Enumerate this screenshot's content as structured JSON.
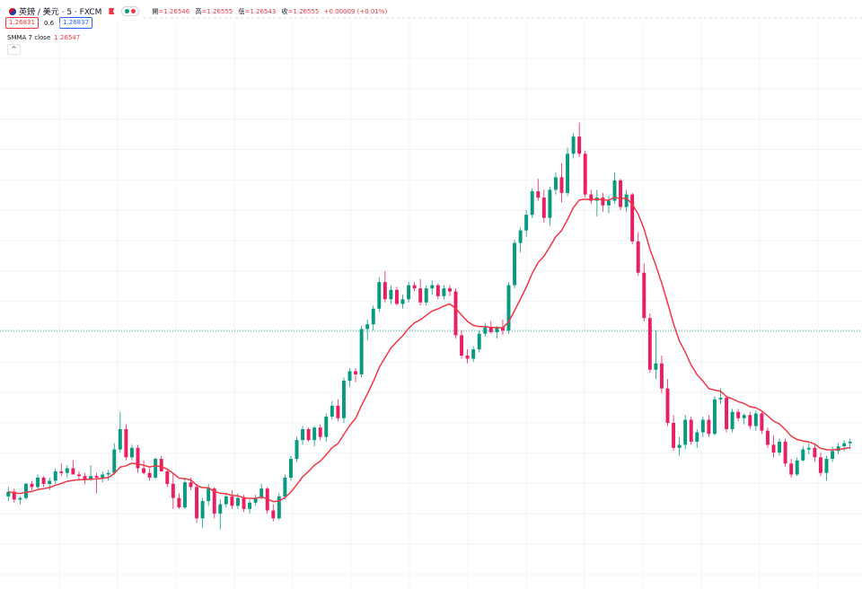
{
  "header": {
    "symbol": "英鎊 / 美元 · 5 · FXCM",
    "open_label": "開",
    "open": "=1.26546",
    "high_label": "高",
    "high": "=1.26555",
    "low_label": "低",
    "low": "=1.26543",
    "close_label": "收",
    "close": "=1.26555",
    "change": "+0.00009 (+0.01%)",
    "bid": "1.26831",
    "spread": "0.6",
    "ask": "1.26837",
    "indicator_name": "SMMA 7 close",
    "indicator_value": "1.26547",
    "collapse_icon": "^"
  },
  "colors": {
    "up": "#089981",
    "down": "#f23645",
    "down_body": "#e91e63",
    "smma": "#f23645",
    "grid": "#f0f3fa",
    "price_line": "#26a69a"
  },
  "chart_data": {
    "type": "candlestick",
    "note_units": "price index (arbitrary units, higher = higher price)",
    "current_price_level": 40.6,
    "candles": [
      [
        30,
        30.6,
        29.7,
        30.3
      ],
      [
        30.3,
        30.5,
        29.6,
        29.8
      ],
      [
        29.8,
        30,
        29.5,
        29.9
      ],
      [
        29.9,
        30.9,
        29.8,
        30.8
      ],
      [
        30.8,
        31,
        30.4,
        30.6
      ],
      [
        30.6,
        31.4,
        30.5,
        31.2
      ],
      [
        31.2,
        31.3,
        30.6,
        30.8
      ],
      [
        30.8,
        31.2,
        30.4,
        31
      ],
      [
        31,
        31.8,
        30.8,
        31.6
      ],
      [
        31.6,
        32.1,
        31.3,
        31.5
      ],
      [
        31.5,
        32,
        31.2,
        31.8
      ],
      [
        31.8,
        32.3,
        31.4,
        31.4
      ],
      [
        31.4,
        31.6,
        31,
        31.3
      ],
      [
        31.3,
        31.5,
        30.8,
        31.1
      ],
      [
        31.1,
        32,
        31,
        31.3
      ],
      [
        31.3,
        31.5,
        30.2,
        31.2
      ],
      [
        31.2,
        31.6,
        30.9,
        31.4
      ],
      [
        31.4,
        31.7,
        31,
        31.5
      ],
      [
        31.5,
        33.4,
        31.4,
        33
      ],
      [
        33,
        35.4,
        32.8,
        34.3
      ],
      [
        34.3,
        34.6,
        32.3,
        32.5
      ],
      [
        32.5,
        33.3,
        32.3,
        33.1
      ],
      [
        33.1,
        33.3,
        31.5,
        31.8
      ],
      [
        31.8,
        32.3,
        31.4,
        31.5
      ],
      [
        31.5,
        31.8,
        31,
        31.2
      ],
      [
        31.2,
        32.5,
        31.1,
        32.4
      ],
      [
        32.4,
        32.6,
        31.7,
        31.6
      ],
      [
        31.6,
        31.7,
        30.6,
        30.8
      ],
      [
        30.8,
        31.5,
        29.2,
        29.9
      ],
      [
        29.9,
        30.2,
        29.2,
        29.3
      ],
      [
        29.3,
        31.2,
        29.2,
        30.9
      ],
      [
        30.9,
        31.2,
        30.4,
        30.6
      ],
      [
        30.6,
        30.8,
        28.3,
        28.6
      ],
      [
        28.6,
        29.9,
        28,
        29.7
      ],
      [
        29.7,
        30.8,
        29.4,
        30.5
      ],
      [
        30.5,
        30.6,
        28.6,
        28.9
      ],
      [
        28.9,
        29.8,
        27.9,
        29.5
      ],
      [
        29.5,
        30.2,
        29.3,
        30
      ],
      [
        30,
        30.4,
        29.2,
        29.4
      ],
      [
        29.4,
        30.2,
        29.2,
        29.9
      ],
      [
        29.9,
        30.1,
        29,
        29.2
      ],
      [
        29.2,
        29.8,
        28.9,
        29.6
      ],
      [
        29.6,
        30.1,
        29.4,
        29.9
      ],
      [
        29.9,
        30.8,
        29.8,
        30.5
      ],
      [
        30.5,
        30.6,
        28.9,
        29.1
      ],
      [
        29.1,
        29.5,
        28.4,
        28.6
      ],
      [
        28.6,
        30.2,
        28.5,
        30
      ],
      [
        30,
        31.4,
        29.8,
        31.2
      ],
      [
        31.2,
        32.6,
        31,
        32.4
      ],
      [
        32.4,
        33.8,
        32.2,
        33.6
      ],
      [
        33.6,
        34.5,
        33.3,
        34.3
      ],
      [
        34.3,
        34.4,
        33.5,
        33.6
      ],
      [
        33.6,
        34.5,
        33.2,
        34.4
      ],
      [
        34.4,
        34.6,
        33.6,
        33.8
      ],
      [
        33.8,
        35.3,
        33.5,
        35.1
      ],
      [
        35.1,
        36.1,
        34.9,
        35.8
      ],
      [
        35.8,
        36.2,
        34.8,
        35
      ],
      [
        35,
        37.6,
        34.7,
        37.4
      ],
      [
        37.4,
        38.2,
        37,
        38
      ],
      [
        38,
        38.2,
        37.3,
        37.8
      ],
      [
        37.8,
        40.9,
        37.6,
        40.7
      ],
      [
        40.7,
        41.3,
        40,
        41
      ],
      [
        41,
        42.2,
        40.6,
        42
      ],
      [
        42,
        44,
        41.8,
        43.7
      ],
      [
        43.7,
        44.4,
        42.4,
        42.6
      ],
      [
        42.6,
        43.5,
        42.3,
        43.2
      ],
      [
        43.2,
        43.4,
        42.2,
        42.3
      ],
      [
        42.3,
        42.9,
        42,
        42.6
      ],
      [
        42.6,
        43.7,
        42.4,
        43.5
      ],
      [
        43.5,
        43.7,
        43.1,
        43.3
      ],
      [
        43.3,
        43.9,
        42.2,
        42.4
      ],
      [
        42.4,
        43.5,
        42.2,
        43.3
      ],
      [
        43.3,
        43.8,
        42.9,
        43.5
      ],
      [
        43.5,
        43.6,
        42.6,
        42.8
      ],
      [
        42.8,
        43.5,
        42.6,
        43.3
      ],
      [
        43.3,
        43.5,
        42.8,
        43.1
      ],
      [
        43.1,
        43.3,
        40.1,
        40.3
      ],
      [
        40.3,
        40.6,
        38.8,
        39
      ],
      [
        39,
        39.4,
        38.5,
        38.8
      ],
      [
        38.8,
        39.6,
        38.6,
        39.4
      ],
      [
        39.4,
        40.6,
        39.2,
        40.4
      ],
      [
        40.4,
        41.1,
        40.2,
        40.8
      ],
      [
        40.8,
        41.2,
        40.4,
        40.5
      ],
      [
        40.5,
        40.9,
        40.1,
        40.8
      ],
      [
        40.8,
        41.3,
        40.3,
        40.6
      ],
      [
        40.6,
        43.7,
        40.4,
        43.5
      ],
      [
        43.5,
        46.4,
        43.3,
        46.2
      ],
      [
        46.2,
        47.2,
        45.6,
        47
      ],
      [
        47,
        48.3,
        46.6,
        48
      ],
      [
        48,
        49.7,
        47.8,
        49.5
      ],
      [
        49.5,
        50.3,
        48.9,
        49.1
      ],
      [
        49.1,
        49.6,
        47.5,
        47.8
      ],
      [
        47.8,
        49.8,
        47.3,
        49.6
      ],
      [
        49.6,
        50.7,
        49.3,
        50.4
      ],
      [
        50.4,
        51.3,
        48.8,
        49.4
      ],
      [
        49.4,
        52.3,
        49.2,
        51.9
      ],
      [
        51.9,
        53.2,
        51.6,
        53
      ],
      [
        53,
        53.9,
        51.7,
        51.9
      ],
      [
        51.9,
        52.1,
        49.1,
        49.3
      ],
      [
        49.3,
        49.6,
        48.7,
        48.9
      ],
      [
        48.9,
        49.6,
        47.9,
        49.1
      ],
      [
        49.1,
        49.4,
        48.2,
        48.6
      ],
      [
        48.6,
        49.2,
        48.1,
        48.9
      ],
      [
        48.9,
        50.7,
        48.7,
        50.2
      ],
      [
        50.2,
        50.3,
        48.3,
        48.5
      ],
      [
        48.5,
        49.6,
        48.2,
        49.3
      ],
      [
        49.3,
        49.4,
        46.1,
        46.3
      ],
      [
        46.3,
        46.9,
        44.1,
        44.3
      ],
      [
        44.3,
        44.9,
        41.2,
        41.4
      ],
      [
        41.4,
        41.7,
        37.9,
        38.1
      ],
      [
        38.1,
        40.6,
        37.5,
        38.5
      ],
      [
        38.5,
        39,
        36.6,
        36.9
      ],
      [
        36.9,
        37.5,
        34.5,
        34.7
      ],
      [
        34.7,
        35.2,
        32.9,
        33.1
      ],
      [
        33.1,
        33.8,
        32.6,
        33.3
      ],
      [
        33.3,
        35.2,
        33,
        34.9
      ],
      [
        34.9,
        35.1,
        33.3,
        33.5
      ],
      [
        33.5,
        34.3,
        33.1,
        34.1
      ],
      [
        34.1,
        35.1,
        33.8,
        34.9
      ],
      [
        34.9,
        35.2,
        33.8,
        34
      ],
      [
        34,
        36.4,
        33.9,
        36.2
      ],
      [
        36.2,
        36.9,
        35.9,
        36.3
      ],
      [
        36.3,
        36.4,
        34.1,
        34.3
      ],
      [
        34.3,
        35.6,
        34.1,
        35.4
      ],
      [
        35.4,
        35.6,
        34.8,
        35
      ],
      [
        35,
        35.3,
        34.6,
        35.2
      ],
      [
        35.2,
        35.4,
        34.3,
        34.5
      ],
      [
        34.5,
        35.5,
        34.2,
        35.3
      ],
      [
        35.3,
        35.4,
        34,
        34.2
      ],
      [
        34.2,
        34.4,
        33.1,
        33.3
      ],
      [
        33.3,
        33.9,
        32.5,
        32.8
      ],
      [
        32.8,
        33.7,
        32.6,
        33.5
      ],
      [
        33.5,
        33.7,
        31.9,
        32.1
      ],
      [
        32.1,
        32.4,
        31.2,
        31.4
      ],
      [
        31.4,
        32.5,
        31.3,
        32.3
      ],
      [
        32.3,
        33.2,
        32.2,
        33
      ],
      [
        33,
        33.4,
        32.7,
        33.1
      ],
      [
        33.1,
        33.3,
        32.2,
        32.5
      ],
      [
        32.5,
        32.8,
        31.3,
        31.5
      ],
      [
        31.5,
        32.6,
        31,
        32.4
      ],
      [
        32.4,
        33.2,
        32.2,
        32.9
      ],
      [
        32.9,
        33.4,
        32.7,
        33.2
      ],
      [
        33.2,
        33.6,
        32.9,
        33.4
      ],
      [
        33.4,
        33.7,
        33,
        33.5
      ]
    ]
  }
}
